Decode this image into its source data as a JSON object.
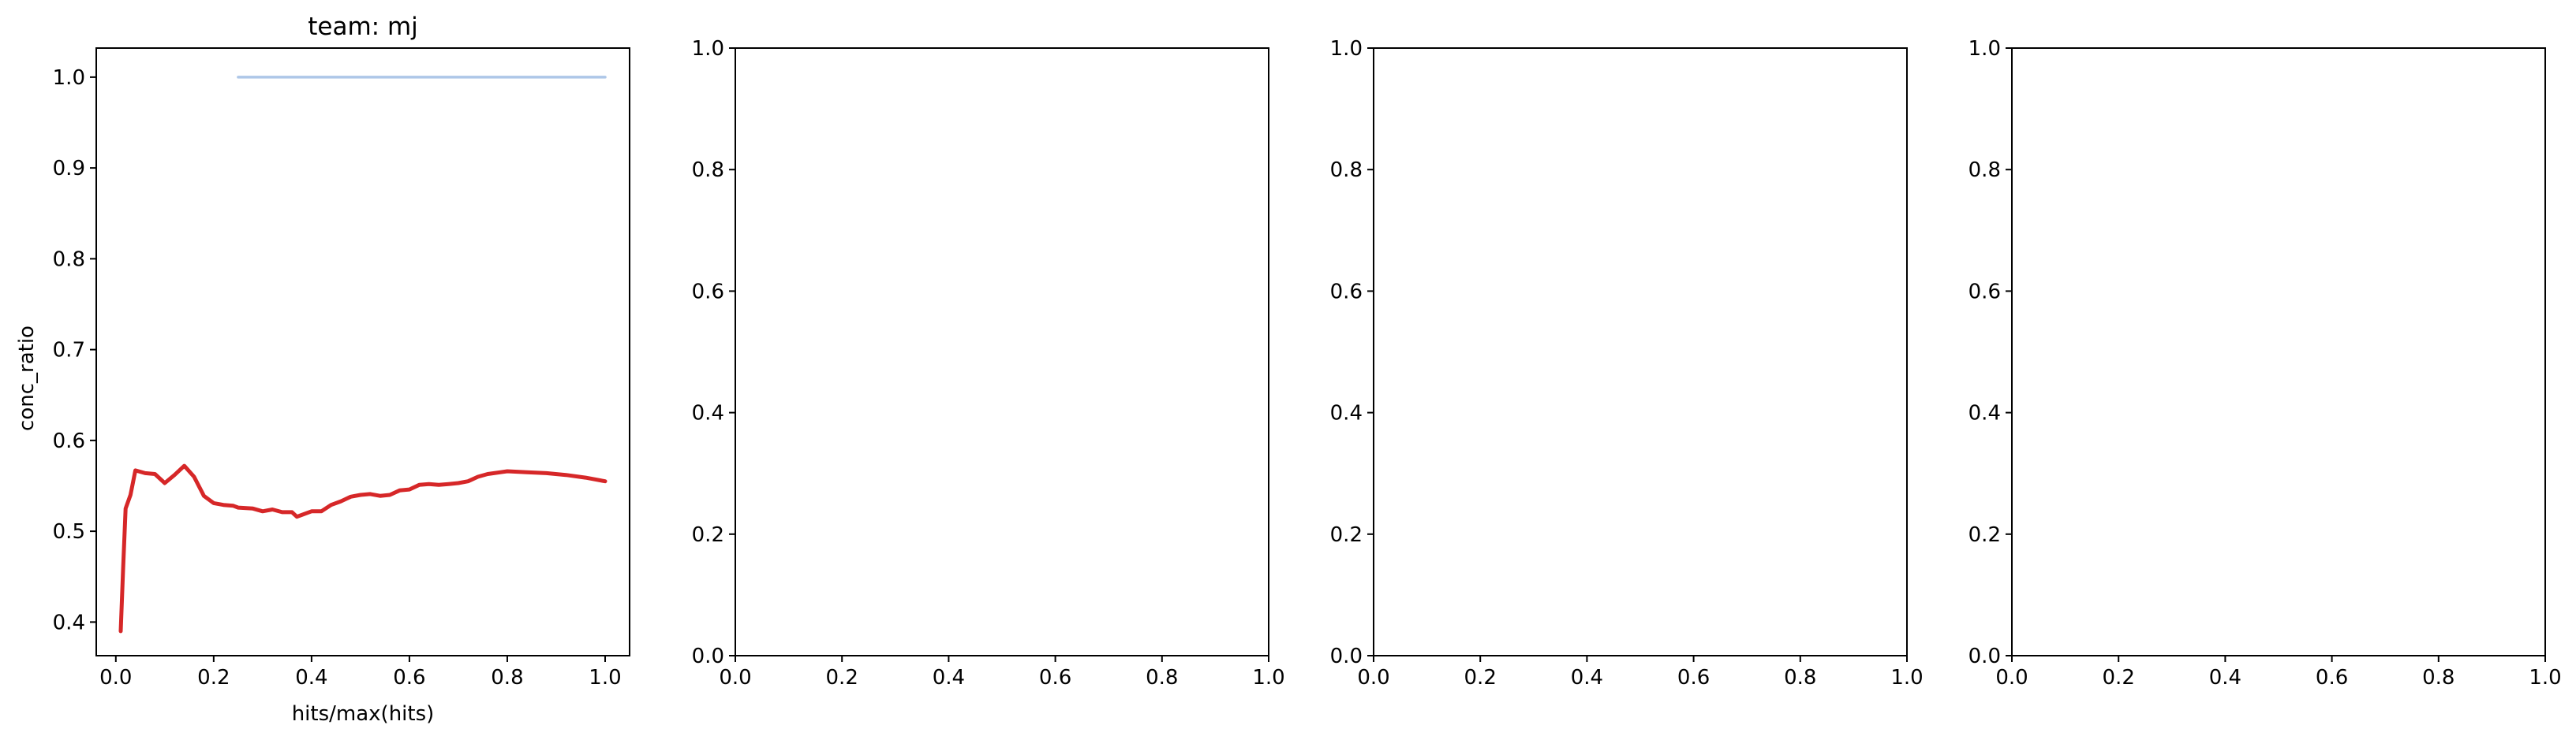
{
  "chart_data": [
    {
      "type": "line",
      "title": "team: mj",
      "xlabel": "hits/max(hits)",
      "ylabel": "conc_ratio",
      "xlim": [
        -0.04,
        1.05
      ],
      "ylim": [
        0.363,
        1.032
      ],
      "xticks": [
        "0.0",
        "0.2",
        "0.4",
        "0.6",
        "0.8",
        "1.0"
      ],
      "yticks": [
        "0.4",
        "0.5",
        "0.6",
        "0.7",
        "0.8",
        "0.9",
        "1.0"
      ],
      "grid": false,
      "colors": {
        "main": "#d62728",
        "reference": "#aec7e8"
      },
      "series": [
        {
          "values": [
            [
              0.01,
              0.39
            ],
            [
              0.015,
              0.46
            ],
            [
              0.02,
              0.525
            ],
            [
              0.03,
              0.54
            ],
            [
              0.04,
              0.567
            ],
            [
              0.06,
              0.564
            ],
            [
              0.08,
              0.563
            ],
            [
              0.1,
              0.553
            ],
            [
              0.12,
              0.562
            ],
            [
              0.14,
              0.572
            ],
            [
              0.16,
              0.56
            ],
            [
              0.18,
              0.539
            ],
            [
              0.2,
              0.531
            ],
            [
              0.22,
              0.529
            ],
            [
              0.24,
              0.528
            ],
            [
              0.25,
              0.526
            ],
            [
              0.28,
              0.525
            ],
            [
              0.3,
              0.522
            ],
            [
              0.32,
              0.524
            ],
            [
              0.34,
              0.521
            ],
            [
              0.36,
              0.521
            ],
            [
              0.37,
              0.516
            ],
            [
              0.4,
              0.522
            ],
            [
              0.42,
              0.522
            ],
            [
              0.44,
              0.529
            ],
            [
              0.46,
              0.533
            ],
            [
              0.48,
              0.538
            ],
            [
              0.5,
              0.54
            ],
            [
              0.52,
              0.541
            ],
            [
              0.54,
              0.539
            ],
            [
              0.56,
              0.54
            ],
            [
              0.58,
              0.545
            ],
            [
              0.6,
              0.546
            ],
            [
              0.62,
              0.551
            ],
            [
              0.64,
              0.552
            ],
            [
              0.66,
              0.551
            ],
            [
              0.68,
              0.552
            ],
            [
              0.7,
              0.553
            ],
            [
              0.72,
              0.555
            ],
            [
              0.74,
              0.56
            ],
            [
              0.76,
              0.563
            ],
            [
              0.8,
              0.566
            ],
            [
              0.84,
              0.565
            ],
            [
              0.88,
              0.564
            ],
            [
              0.92,
              0.562
            ],
            [
              0.96,
              0.559
            ],
            [
              1.0,
              0.555
            ]
          ]
        },
        {
          "values": [
            [
              0.25,
              1.0
            ],
            [
              1.0,
              1.0
            ]
          ]
        }
      ]
    },
    {
      "type": "line",
      "title": "",
      "xlabel": "",
      "ylabel": "",
      "xlim": [
        0,
        1
      ],
      "ylim": [
        0,
        1
      ],
      "xticks": [
        "0.0",
        "0.2",
        "0.4",
        "0.6",
        "0.8",
        "1.0"
      ],
      "yticks": [
        "0.0",
        "0.2",
        "0.4",
        "0.6",
        "0.8",
        "1.0"
      ],
      "grid": false,
      "series": []
    },
    {
      "type": "line",
      "title": "",
      "xlabel": "",
      "ylabel": "",
      "xlim": [
        0,
        1
      ],
      "ylim": [
        0,
        1
      ],
      "xticks": [
        "0.0",
        "0.2",
        "0.4",
        "0.6",
        "0.8",
        "1.0"
      ],
      "yticks": [
        "0.0",
        "0.2",
        "0.4",
        "0.6",
        "0.8",
        "1.0"
      ],
      "grid": false,
      "series": []
    },
    {
      "type": "line",
      "title": "",
      "xlabel": "",
      "ylabel": "",
      "xlim": [
        0,
        1
      ],
      "ylim": [
        0,
        1
      ],
      "xticks": [
        "0.0",
        "0.2",
        "0.4",
        "0.6",
        "0.8",
        "1.0"
      ],
      "yticks": [
        "0.0",
        "0.2",
        "0.4",
        "0.6",
        "0.8",
        "1.0"
      ],
      "grid": false,
      "series": []
    }
  ]
}
